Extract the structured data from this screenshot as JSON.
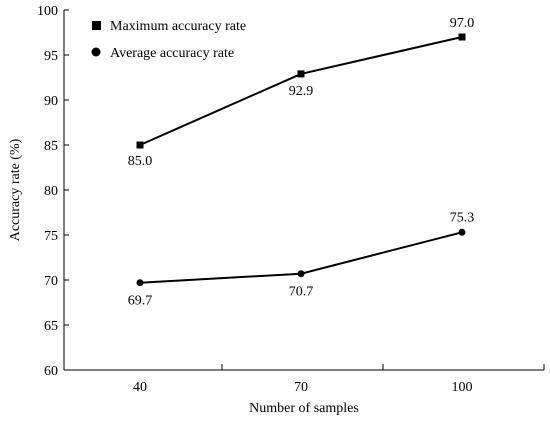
{
  "chart_data": {
    "type": "line",
    "xlabel": "Number of samples",
    "ylabel": "Accuracy rate (%)",
    "categories": [
      "40",
      "70",
      "100"
    ],
    "ylim": [
      60,
      100
    ],
    "yticks": [
      60,
      65,
      70,
      75,
      80,
      85,
      90,
      95,
      100
    ],
    "grid": false,
    "legend_position": "top-left",
    "series": [
      {
        "name": "Maximum accuracy rate",
        "marker": "square",
        "values": [
          85.0,
          92.9,
          97.0
        ],
        "labels": [
          "85.0",
          "92.9",
          "97.0"
        ],
        "color": "#000000"
      },
      {
        "name": "Average accuracy rate",
        "marker": "circle",
        "values": [
          69.7,
          70.7,
          75.3
        ],
        "labels": [
          "69.7",
          "70.7",
          "75.3"
        ],
        "color": "#000000"
      }
    ]
  }
}
